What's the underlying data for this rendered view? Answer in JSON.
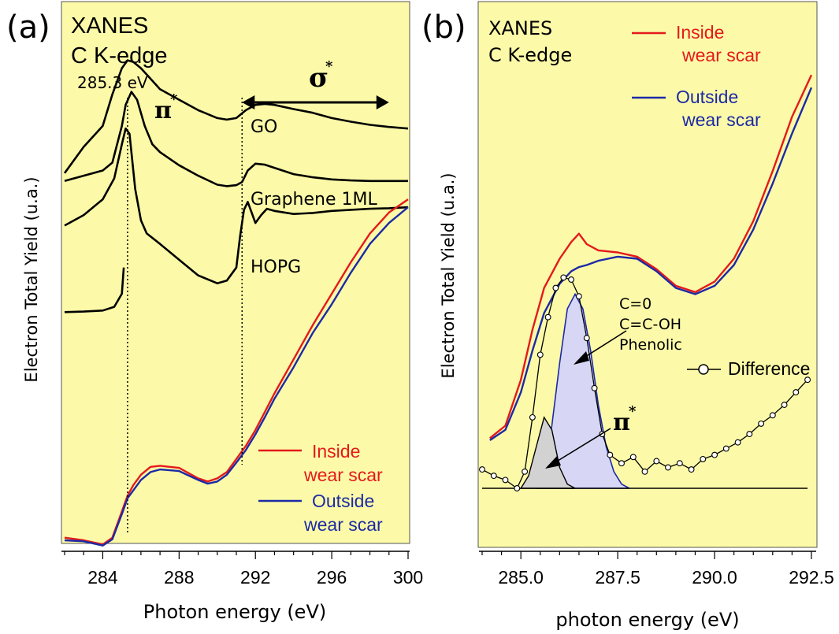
{
  "colors": {
    "background": "#fcfaa8",
    "inside": "#e41a1c",
    "outside": "#1c2aa6",
    "trace": "#000000",
    "pi_fill": "#d2d2d2",
    "peak_fill": "#d7d7f5"
  },
  "chart_data": [
    {
      "type": "line",
      "panel": "(a)",
      "title": "XANES\nC K-edge",
      "title_lines": [
        "XANES",
        "C K-edge"
      ],
      "xlabel": "Photon energy (eV)",
      "ylabel": "Electron Total Yield (u.a.)",
      "xlim": [
        282,
        300
      ],
      "ylim": [
        0,
        10
      ],
      "xticks": [
        284,
        288,
        292,
        296,
        300
      ],
      "xtick_labels": [
        "284",
        "288",
        "292",
        "296",
        "300"
      ],
      "y_units": "arbitrary (stacked, offset)",
      "grid": false,
      "legend_position": "bottom-right",
      "annotations": {
        "peak_energy": "285.3 eV",
        "pi_label": "π",
        "pi_sup": "*",
        "sigma_label": "σ",
        "sigma_sup": "*",
        "pi_line_x": 285.3,
        "sigma_line_x": 291.3,
        "sigma_arrow_range": [
          291.3,
          299
        ]
      },
      "legend": [
        "Inside",
        "wear scar",
        "Outside",
        "wear scar"
      ],
      "series": [
        {
          "name": "GO",
          "x": [
            282,
            283,
            284,
            284.5,
            285,
            285.3,
            285.6,
            286,
            286.5,
            287,
            288,
            289,
            290,
            290.5,
            291,
            291.5,
            292,
            292.5,
            293,
            294,
            295,
            296,
            297,
            298,
            299,
            300
          ],
          "y": [
            7.0,
            7.5,
            7.9,
            8.5,
            9.0,
            9.15,
            9.12,
            9.0,
            8.8,
            8.6,
            8.4,
            8.2,
            8.05,
            8.02,
            8.05,
            8.2,
            8.3,
            8.32,
            8.3,
            8.22,
            8.15,
            8.05,
            7.98,
            7.92,
            7.88,
            7.85
          ]
        },
        {
          "name": "Graphene 1ML",
          "x": [
            282,
            283,
            284,
            284.5,
            285,
            285.2,
            285.5,
            285.8,
            286.2,
            286.6,
            287,
            288,
            289,
            290,
            290.5,
            291,
            291.3,
            291.6,
            292,
            292.5,
            293,
            294,
            295,
            296,
            297,
            298,
            299,
            300
          ],
          "y": [
            6.85,
            6.95,
            7.05,
            7.2,
            7.9,
            8.3,
            8.55,
            8.4,
            7.9,
            7.55,
            7.4,
            7.15,
            6.95,
            6.78,
            6.75,
            6.77,
            6.83,
            7.05,
            7.18,
            7.16,
            7.1,
            6.98,
            6.92,
            6.88,
            6.86,
            6.85,
            6.85,
            6.85
          ]
        },
        {
          "name": "HOPG",
          "x": [
            282,
            283,
            284,
            284.6,
            285,
            285.2,
            285.4,
            285.7,
            286,
            286.3,
            287,
            288,
            289,
            290,
            290.5,
            291,
            291.2,
            291.4,
            291.6,
            291.8,
            292,
            292.3,
            292.6,
            293,
            294,
            295,
            296,
            297,
            298,
            299,
            300
          ],
          "y": [
            6.0,
            6.2,
            6.5,
            6.9,
            7.55,
            7.85,
            7.75,
            6.7,
            6.1,
            5.85,
            5.65,
            5.35,
            5.05,
            4.9,
            4.95,
            5.2,
            5.8,
            6.3,
            6.45,
            6.25,
            6.05,
            6.2,
            6.32,
            6.28,
            6.22,
            6.24,
            6.28,
            6.3,
            6.32,
            6.33,
            6.35
          ]
        },
        {
          "name": "HOPG baseline",
          "x": [
            282,
            283,
            284,
            284.6,
            285,
            285.1
          ],
          "y": [
            4.35,
            4.36,
            4.38,
            4.45,
            4.7,
            5.2
          ]
        },
        {
          "name": "Inside wear scar",
          "x": [
            282,
            283,
            284,
            284.5,
            285,
            285.3,
            285.6,
            286,
            286.5,
            287,
            288,
            289,
            289.5,
            290,
            290.5,
            291,
            291.5,
            292,
            292.5,
            293,
            294,
            295,
            296,
            297,
            298,
            299,
            300
          ],
          "y": [
            0.05,
            0.0,
            -0.08,
            0.05,
            0.55,
            0.85,
            1.05,
            1.25,
            1.4,
            1.42,
            1.38,
            1.18,
            1.12,
            1.18,
            1.3,
            1.55,
            1.8,
            2.1,
            2.45,
            2.8,
            3.45,
            4.1,
            4.7,
            5.3,
            5.85,
            6.25,
            6.5
          ]
        },
        {
          "name": "Outside wear scar",
          "x": [
            282,
            283,
            284,
            284.5,
            285,
            285.3,
            285.6,
            286,
            286.5,
            287,
            288,
            289,
            289.5,
            290,
            290.5,
            291,
            291.5,
            292,
            292.5,
            293,
            294,
            295,
            296,
            297,
            298,
            299,
            300
          ],
          "y": [
            0.0,
            -0.02,
            -0.1,
            0.02,
            0.5,
            0.8,
            0.95,
            1.15,
            1.3,
            1.35,
            1.32,
            1.15,
            1.08,
            1.12,
            1.25,
            1.48,
            1.72,
            2.02,
            2.35,
            2.7,
            3.3,
            3.95,
            4.5,
            5.1,
            5.65,
            6.05,
            6.35
          ]
        }
      ]
    },
    {
      "type": "line",
      "panel": "(b)",
      "title": "XANES\nC K-edge",
      "title_lines": [
        "XANES",
        "C K-edge"
      ],
      "xlabel": "photon energy (eV)",
      "ylabel": "Electron Total Yield (u.a.)",
      "xlim": [
        284,
        292.5
      ],
      "ylim": [
        -0.5,
        10
      ],
      "xticks": [
        285.0,
        287.5,
        290.0,
        292.5
      ],
      "xtick_labels": [
        "285.0",
        "287.5",
        "290.0",
        "292.5"
      ],
      "y_units": "arbitrary",
      "grid": false,
      "legend_position": "top-right",
      "legend": [
        "Inside",
        "wear scar",
        "Outside",
        "wear scar",
        "Difference"
      ],
      "annotations": {
        "peak_labels": [
          "C=0",
          "C=C-OH",
          "Phenolic"
        ],
        "pi_label": "π",
        "pi_sup": "*",
        "baseline_y": 0
      },
      "series": [
        {
          "name": "Inside wear scar",
          "x": [
            284.2,
            284.6,
            285.0,
            285.3,
            285.6,
            286.0,
            286.3,
            286.5,
            286.7,
            287.0,
            287.5,
            288.0,
            288.5,
            289.0,
            289.5,
            290.0,
            290.5,
            291.0,
            291.5,
            292.0,
            292.5
          ],
          "y": [
            1.2,
            1.5,
            2.6,
            3.8,
            4.8,
            5.5,
            5.9,
            6.1,
            5.85,
            5.7,
            5.65,
            5.55,
            5.25,
            4.85,
            4.7,
            4.95,
            5.5,
            6.4,
            7.6,
            8.9,
            9.9
          ]
        },
        {
          "name": "Outside wear scar",
          "x": [
            284.2,
            284.6,
            285.0,
            285.3,
            285.6,
            286.0,
            286.3,
            286.5,
            286.7,
            287.0,
            287.5,
            288.0,
            288.5,
            289.0,
            289.5,
            290.0,
            290.5,
            291.0,
            291.5,
            292.0,
            292.5
          ],
          "y": [
            1.15,
            1.4,
            2.3,
            3.3,
            4.2,
            4.9,
            5.2,
            5.3,
            5.35,
            5.45,
            5.55,
            5.5,
            5.2,
            4.8,
            4.65,
            4.85,
            5.35,
            6.2,
            7.3,
            8.5,
            9.6
          ]
        },
        {
          "name": "Difference",
          "x": [
            284.0,
            284.3,
            284.6,
            284.9,
            285.1,
            285.3,
            285.5,
            285.7,
            285.9,
            286.1,
            286.3,
            286.5,
            286.7,
            286.9,
            287.1,
            287.3,
            287.6,
            287.9,
            288.2,
            288.5,
            288.8,
            289.1,
            289.4,
            289.7,
            290.0,
            290.3,
            290.6,
            290.9,
            291.2,
            291.5,
            291.8,
            292.1,
            292.4
          ],
          "y": [
            0.45,
            0.3,
            0.2,
            0.0,
            0.4,
            1.7,
            3.2,
            4.1,
            4.8,
            5.05,
            5.0,
            4.6,
            3.6,
            2.4,
            1.3,
            0.8,
            0.6,
            0.75,
            0.4,
            0.65,
            0.5,
            0.6,
            0.45,
            0.7,
            0.8,
            0.95,
            1.1,
            1.3,
            1.55,
            1.75,
            2.0,
            2.3,
            2.6
          ]
        },
        {
          "name": "π* peak",
          "x": [
            285.0,
            285.2,
            285.4,
            285.6,
            285.8,
            286.0,
            286.2,
            286.4
          ],
          "y": [
            0.0,
            0.3,
            1.0,
            1.7,
            1.4,
            0.5,
            0.1,
            0.0
          ]
        },
        {
          "name": "C=0 / C=C-OH / Phenolic peak",
          "x": [
            285.4,
            285.6,
            285.8,
            286.0,
            286.2,
            286.4,
            286.6,
            286.8,
            287.0,
            287.2,
            287.4,
            287.6,
            287.8
          ],
          "y": [
            0.0,
            0.4,
            1.5,
            3.0,
            4.3,
            4.65,
            4.3,
            3.3,
            2.0,
            1.0,
            0.4,
            0.1,
            0.0
          ]
        }
      ]
    }
  ]
}
